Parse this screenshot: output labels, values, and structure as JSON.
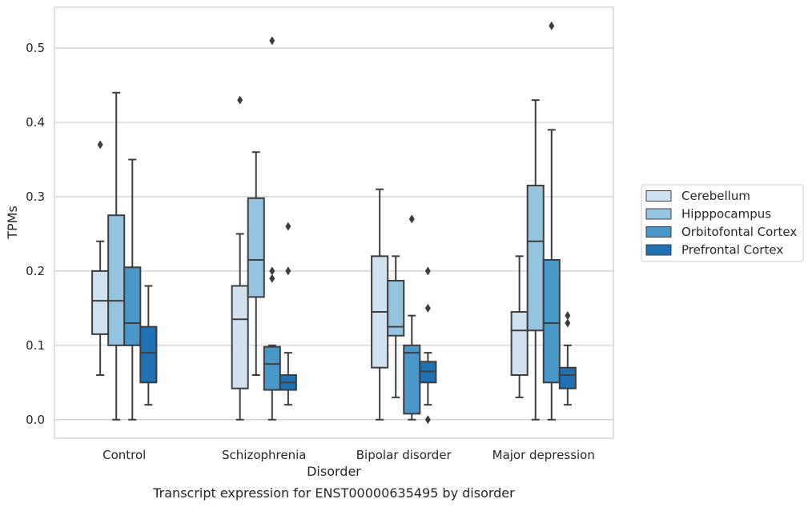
{
  "caption": "Transcript expression for ENST00000635495 by disorder",
  "chart_data": {
    "type": "box",
    "xlabel": "Disorder",
    "ylabel": "TPMs",
    "ylim": [
      -0.025,
      0.555
    ],
    "yticks": [
      "0.0",
      "0.1",
      "0.2",
      "0.3",
      "0.4",
      "0.5"
    ],
    "ytick_values": [
      0.0,
      0.1,
      0.2,
      0.3,
      0.4,
      0.5
    ],
    "grid": "horizontal",
    "legend_position": "right",
    "categories": [
      "Control",
      "Schizophrenia",
      "Bipolar disorder",
      "Major depression"
    ],
    "series": [
      {
        "name": "Cerebellum",
        "color": "#d0e1f2",
        "boxes": [
          {
            "q1": 0.115,
            "median": 0.16,
            "q3": 0.2,
            "whisker_low": 0.06,
            "whisker_high": 0.24,
            "outliers": [
              0.37
            ]
          },
          {
            "q1": 0.042,
            "median": 0.135,
            "q3": 0.18,
            "whisker_low": 0.0,
            "whisker_high": 0.25,
            "outliers": [
              0.43
            ]
          },
          {
            "q1": 0.07,
            "median": 0.145,
            "q3": 0.22,
            "whisker_low": 0.0,
            "whisker_high": 0.31,
            "outliers": []
          },
          {
            "q1": 0.06,
            "median": 0.12,
            "q3": 0.145,
            "whisker_low": 0.03,
            "whisker_high": 0.22,
            "outliers": []
          }
        ]
      },
      {
        "name": "Hipppocampus",
        "color": "#94c4df",
        "boxes": [
          {
            "q1": 0.1,
            "median": 0.16,
            "q3": 0.275,
            "whisker_low": 0.0,
            "whisker_high": 0.44,
            "outliers": []
          },
          {
            "q1": 0.165,
            "median": 0.215,
            "q3": 0.298,
            "whisker_low": 0.06,
            "whisker_high": 0.36,
            "outliers": []
          },
          {
            "q1": 0.113,
            "median": 0.125,
            "q3": 0.187,
            "whisker_low": 0.03,
            "whisker_high": 0.22,
            "outliers": []
          },
          {
            "q1": 0.12,
            "median": 0.24,
            "q3": 0.315,
            "whisker_low": 0.0,
            "whisker_high": 0.43,
            "outliers": []
          }
        ]
      },
      {
        "name": "Orbitofontal Cortex",
        "color": "#4a98c9",
        "boxes": [
          {
            "q1": 0.1,
            "median": 0.13,
            "q3": 0.205,
            "whisker_low": 0.0,
            "whisker_high": 0.35,
            "outliers": []
          },
          {
            "q1": 0.04,
            "median": 0.075,
            "q3": 0.098,
            "whisker_low": 0.0,
            "whisker_high": 0.1,
            "outliers": [
              0.51,
              0.2,
              0.19
            ]
          },
          {
            "q1": 0.008,
            "median": 0.09,
            "q3": 0.1,
            "whisker_low": 0.0,
            "whisker_high": 0.14,
            "outliers": [
              0.27
            ]
          },
          {
            "q1": 0.05,
            "median": 0.13,
            "q3": 0.215,
            "whisker_low": 0.0,
            "whisker_high": 0.39,
            "outliers": [
              0.53
            ]
          }
        ]
      },
      {
        "name": "Prefrontal Cortex",
        "color": "#2070b4",
        "boxes": [
          {
            "q1": 0.05,
            "median": 0.09,
            "q3": 0.125,
            "whisker_low": 0.02,
            "whisker_high": 0.18,
            "outliers": []
          },
          {
            "q1": 0.04,
            "median": 0.05,
            "q3": 0.06,
            "whisker_low": 0.02,
            "whisker_high": 0.09,
            "outliers": [
              0.26,
              0.2
            ]
          },
          {
            "q1": 0.05,
            "median": 0.065,
            "q3": 0.078,
            "whisker_low": 0.02,
            "whisker_high": 0.09,
            "outliers": [
              0.2,
              0.15,
              0.0
            ]
          },
          {
            "q1": 0.042,
            "median": 0.06,
            "q3": 0.07,
            "whisker_low": 0.02,
            "whisker_high": 0.1,
            "outliers": [
              0.14,
              0.13
            ]
          }
        ]
      }
    ]
  }
}
